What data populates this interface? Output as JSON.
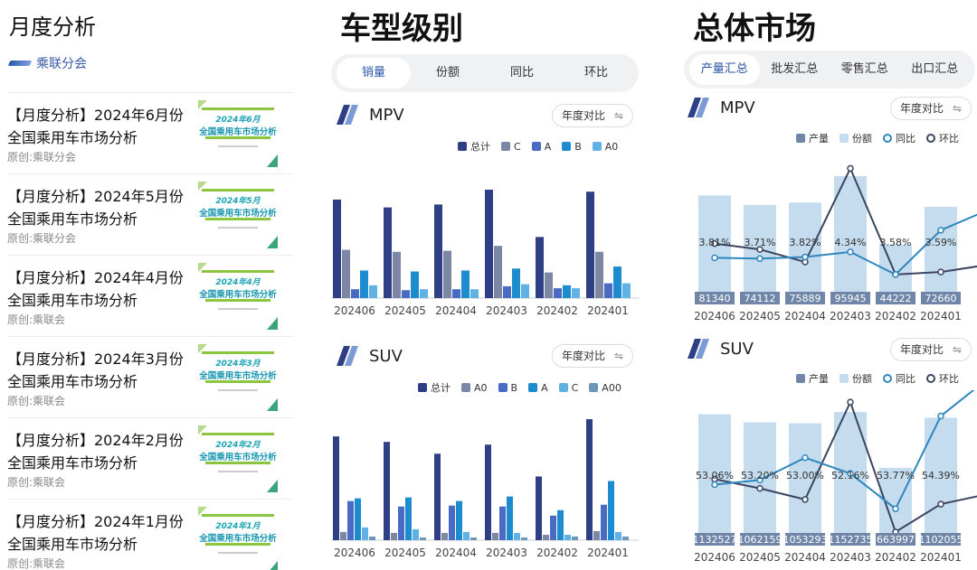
{
  "left": {
    "title": "月度分析",
    "source_name": "乘联分会",
    "articles": [
      {
        "title_line1": "【月度分析】2024年6月份",
        "title_line2": "全国乘用车市场分析",
        "source": "原创:乘联分会",
        "thumb_month": "2024年6月",
        "thumb_title": "全国乘用车市场分析"
      },
      {
        "title_line1": "【月度分析】2024年5月份",
        "title_line2": "全国乘用车市场分析",
        "source": "原创:乘联分会",
        "thumb_month": "2024年5月",
        "thumb_title": "全国乘用车市场分析"
      },
      {
        "title_line1": "【月度分析】2024年4月份",
        "title_line2": "全国乘用车市场分析",
        "source": "原创:乘联会",
        "thumb_month": "2024年4月",
        "thumb_title": "全国乘用车市场分析"
      },
      {
        "title_line1": "【月度分析】2024年3月份",
        "title_line2": "全国乘用车市场分析",
        "source": "原创:乘联会",
        "thumb_month": "2024年3月",
        "thumb_title": "全国乘用车市场分析"
      },
      {
        "title_line1": "【月度分析】2024年2月份",
        "title_line2": "全国乘用车市场分析",
        "source": "原创:乘联会",
        "thumb_month": "2024年2月",
        "thumb_title": "全国乘用车市场分析"
      },
      {
        "title_line1": "【月度分析】2024年1月份",
        "title_line2": "全国乘用车市场分析",
        "source": "原创:乘联会",
        "thumb_month": "2024年1月",
        "thumb_title": "全国乘用车市场分析"
      }
    ]
  },
  "mid": {
    "title": "车型级别",
    "tabs": [
      "销量",
      "份额",
      "同比",
      "环比"
    ],
    "active_tab": 0,
    "mpv_title": "MPV",
    "suv_title": "SUV",
    "dropdown": "年度对比",
    "mpv_legend": [
      "总计",
      "C",
      "A",
      "B",
      "A0"
    ],
    "suv_legend": [
      "总计",
      "A0",
      "B",
      "A",
      "C",
      "A00"
    ]
  },
  "right": {
    "title": "总体市场",
    "tabs": [
      "产量汇总",
      "批发汇总",
      "零售汇总",
      "出口汇总"
    ],
    "active_tab": 0,
    "mpv_title": "MPV",
    "suv_title": "SUV",
    "dropdown": "年度对比",
    "legend": [
      "产量",
      "份额",
      "同比",
      "环比"
    ]
  },
  "colors": {
    "navy": "#2e3f86",
    "slate": "#7c87a6",
    "blue": "#4a6bc4",
    "cyan": "#1d8ccf",
    "light": "#5fb2e3",
    "steel": "#6b98b8",
    "bar_light": "#c4dcee",
    "val_bg": "#6f86a8",
    "line_dark": "#3c4560",
    "line_blue": "#2f86bd"
  },
  "chart_data": [
    {
      "type": "bar",
      "title": "MPV",
      "categories": [
        "202406",
        "202405",
        "202404",
        "202403",
        "202402",
        "202401"
      ],
      "series": [
        {
          "name": "总计",
          "values": [
            100,
            92,
            95,
            110,
            62,
            108
          ]
        },
        {
          "name": "C",
          "values": [
            49,
            47,
            48,
            53,
            26,
            47
          ]
        },
        {
          "name": "A",
          "values": [
            9,
            8,
            9,
            12,
            10,
            15
          ]
        },
        {
          "name": "B",
          "values": [
            28,
            27,
            28,
            30,
            13,
            32
          ]
        },
        {
          "name": "A0",
          "values": [
            13,
            9,
            9,
            14,
            10,
            15
          ]
        }
      ]
    },
    {
      "type": "bar",
      "title": "SUV",
      "categories": [
        "202406",
        "202405",
        "202404",
        "202403",
        "202402",
        "202401"
      ],
      "series": [
        {
          "name": "总计",
          "values": [
            114,
            108,
            95,
            105,
            70,
            133
          ]
        },
        {
          "name": "A0",
          "values": [
            9,
            8,
            8,
            8,
            6,
            10
          ]
        },
        {
          "name": "B",
          "values": [
            43,
            37,
            38,
            37,
            27,
            39
          ]
        },
        {
          "name": "A",
          "values": [
            46,
            47,
            43,
            48,
            33,
            65
          ]
        },
        {
          "name": "C",
          "values": [
            14,
            12,
            9,
            8,
            6,
            9
          ]
        },
        {
          "name": "A00",
          "values": [
            4,
            3,
            3,
            3,
            4,
            4
          ]
        }
      ]
    },
    {
      "type": "bar",
      "title": "MPV",
      "categories": [
        "202406",
        "202405",
        "202404",
        "202403",
        "202402",
        "202401"
      ],
      "series": [
        {
          "name": "产量",
          "values": [
            81340,
            74112,
            75889,
            95945,
            44222,
            72660
          ]
        },
        {
          "name": "份额",
          "values": [
            "3.81%",
            "3.71%",
            "3.82%",
            "4.34%",
            "3.58%",
            "3.59%"
          ]
        },
        {
          "name": "同比",
          "values": [
            45,
            44,
            46,
            52,
            25,
            78
          ]
        },
        {
          "name": "环比",
          "values": [
            62,
            55,
            40,
            152,
            25,
            28
          ]
        }
      ]
    },
    {
      "type": "bar",
      "title": "SUV",
      "categories": [
        "202406",
        "202405",
        "202404",
        "202403",
        "202402",
        "202401"
      ],
      "series": [
        {
          "name": "产量",
          "values": [
            1132527,
            1062159,
            1053293,
            1152735,
            663997,
            1102055
          ]
        },
        {
          "name": "份额",
          "values": [
            "53.06%",
            "53.20%",
            "53.00%",
            "52.16%",
            "53.77%",
            "54.39%"
          ]
        },
        {
          "name": "同比",
          "values": [
            56,
            61,
            85,
            68,
            30,
            130
          ]
        },
        {
          "name": "环比",
          "values": [
            62,
            52,
            40,
            145,
            5,
            35
          ]
        }
      ]
    }
  ]
}
